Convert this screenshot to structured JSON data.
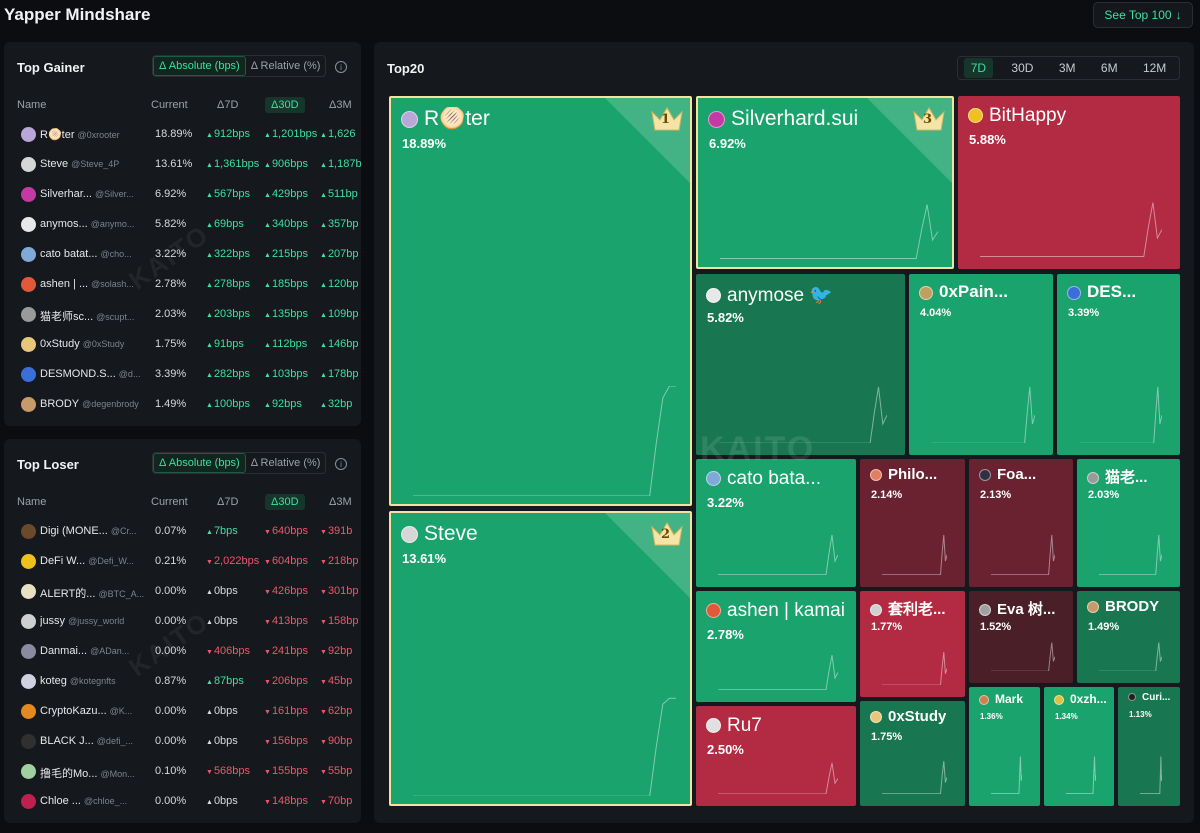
{
  "title": "Yapper Mindshare",
  "see_top": "See Top 100",
  "gainer": {
    "title": "Top Gainer",
    "toggle_abs": "Δ Absolute (bps)",
    "toggle_rel": "Δ Relative (%)",
    "headers": {
      "name": "Name",
      "current": "Current",
      "d7": "Δ7D",
      "d30": "Δ30D",
      "m3": "Δ3M"
    },
    "rows": [
      {
        "name": "R🫓ter",
        "handle": "@0xrooter",
        "current": "18.89%",
        "d7": "912bps",
        "d30": "1,201bps",
        "m3": "1,626",
        "color": "#b9a7d8"
      },
      {
        "name": "Steve",
        "handle": "@Steve_4P",
        "current": "13.61%",
        "d7": "1,361bps",
        "d30": "906bps",
        "m3": "1,187b",
        "color": "#d6d6d6"
      },
      {
        "name": "Silverhar...",
        "handle": "@Silver...",
        "current": "6.92%",
        "d7": "567bps",
        "d30": "429bps",
        "m3": "511bp",
        "color": "#c33aa5"
      },
      {
        "name": "anymos...",
        "handle": "@anymo...",
        "current": "5.82%",
        "d7": "69bps",
        "d30": "340bps",
        "m3": "357bp",
        "color": "#e8e8e8"
      },
      {
        "name": "cato batat...",
        "handle": "@cho...",
        "current": "3.22%",
        "d7": "322bps",
        "d30": "215bps",
        "m3": "207bp",
        "color": "#7fa9d9"
      },
      {
        "name": "ashen | ...",
        "handle": "@solash...",
        "current": "2.78%",
        "d7": "278bps",
        "d30": "185bps",
        "m3": "120bp",
        "color": "#e05a3a"
      },
      {
        "name": "猫老师sc...",
        "handle": "@scupt...",
        "current": "2.03%",
        "d7": "203bps",
        "d30": "135bps",
        "m3": "109bp",
        "color": "#9a9a9a"
      },
      {
        "name": "0xStudy",
        "handle": "@0xStudy",
        "current": "1.75%",
        "d7": "91bps",
        "d30": "112bps",
        "m3": "146bp",
        "color": "#e8c67a"
      },
      {
        "name": "DESMOND.S...",
        "handle": "@d...",
        "current": "3.39%",
        "d7": "282bps",
        "d30": "103bps",
        "m3": "178bp",
        "color": "#3a6fd8"
      },
      {
        "name": "BRODY",
        "handle": "@degenbrody",
        "current": "1.49%",
        "d7": "100bps",
        "d30": "92bps",
        "m3": "32bp",
        "color": "#c79a6a"
      }
    ]
  },
  "loser": {
    "title": "Top Loser",
    "toggle_abs": "Δ Absolute (bps)",
    "toggle_rel": "Δ Relative (%)",
    "headers": {
      "name": "Name",
      "current": "Current",
      "d7": "Δ7D",
      "d30": "Δ30D",
      "m3": "Δ3M"
    },
    "rows": [
      {
        "name": "Digi (MONE...",
        "handle": "@Cr...",
        "current": "0.07%",
        "d7": "7bps",
        "d7dir": "up",
        "d30": "640bps",
        "m3": "391b",
        "color": "#6a4a2a"
      },
      {
        "name": "DeFi W...",
        "handle": "@Defi_W...",
        "current": "0.21%",
        "d7": "2,022bps",
        "d7dir": "dn",
        "d30": "604bps",
        "m3": "218bp",
        "color": "#f0c020"
      },
      {
        "name": "ALERT的...",
        "handle": "@BTC_A...",
        "current": "0.00%",
        "d7": "0bps",
        "d7dir": "flat",
        "d30": "426bps",
        "m3": "301bp",
        "color": "#e8e0c0"
      },
      {
        "name": "jussy",
        "handle": "@jussy_world",
        "current": "0.00%",
        "d7": "0bps",
        "d7dir": "flat",
        "d30": "413bps",
        "m3": "158bp",
        "color": "#cfcfcf"
      },
      {
        "name": "Danmai...",
        "handle": "@ADan...",
        "current": "0.00%",
        "d7": "406bps",
        "d7dir": "dn",
        "d30": "241bps",
        "m3": "92bp",
        "color": "#8a8aa0"
      },
      {
        "name": "koteg",
        "handle": "@kotegnfts",
        "current": "0.87%",
        "d7": "87bps",
        "d7dir": "up",
        "d30": "206bps",
        "m3": "45bp",
        "color": "#d0d0e0"
      },
      {
        "name": "CryptoKazu...",
        "handle": "@K...",
        "current": "0.00%",
        "d7": "0bps",
        "d7dir": "flat",
        "d30": "161bps",
        "m3": "62bp",
        "color": "#e08a20"
      },
      {
        "name": "BLACK J...",
        "handle": "@defi_...",
        "current": "0.00%",
        "d7": "0bps",
        "d7dir": "flat",
        "d30": "156bps",
        "m3": "90bp",
        "color": "#303030"
      },
      {
        "name": "撸毛的Mo...",
        "handle": "@Mon...",
        "current": "0.10%",
        "d7": "568bps",
        "d7dir": "dn",
        "d30": "155bps",
        "m3": "55bp",
        "color": "#a0d0a0"
      },
      {
        "name": "Chloe ...",
        "handle": "@chloe_...",
        "current": "0.00%",
        "d7": "0bps",
        "d7dir": "flat",
        "d30": "148bps",
        "m3": "70bp",
        "color": "#c02050"
      }
    ]
  },
  "top20": {
    "title": "Top20",
    "tabs": [
      "7D",
      "30D",
      "3M",
      "6M",
      "12M"
    ],
    "active_tab": "7D",
    "watermark": "KAITO",
    "tiles": [
      {
        "name": "R🫓ter",
        "pct": "18.89%",
        "trend": "up",
        "rank": "1",
        "avatar": "#b9a7d8"
      },
      {
        "name": "Steve",
        "pct": "13.61%",
        "trend": "up",
        "rank": "2",
        "avatar": "#d6d6d6"
      },
      {
        "name": "Silverhard.sui",
        "pct": "6.92%",
        "trend": "up",
        "rank": "3",
        "avatar": "#c33aa5"
      },
      {
        "name": "BitHappy",
        "pct": "5.88%",
        "trend": "down",
        "avatar": "#f0c020"
      },
      {
        "name": "anymose 🐦",
        "pct": "5.82%",
        "trend": "flat",
        "avatar": "#e8e8e8"
      },
      {
        "name": "0xPain...",
        "pct": "4.04%",
        "trend": "up",
        "avatar": "#c0a060"
      },
      {
        "name": "DES...",
        "pct": "3.39%",
        "trend": "up",
        "avatar": "#3a6fd8"
      },
      {
        "name": "cato bata...",
        "pct": "3.22%",
        "trend": "up",
        "avatar": "#7fa9d9"
      },
      {
        "name": "Philo...",
        "pct": "2.14%",
        "trend": "down",
        "avatar": "#e08060"
      },
      {
        "name": "Foa...",
        "pct": "2.13%",
        "trend": "down",
        "avatar": "#303040"
      },
      {
        "name": "猫老...",
        "pct": "2.03%",
        "trend": "up",
        "avatar": "#9a9a9a"
      },
      {
        "name": "ashen | kamai",
        "pct": "2.78%",
        "trend": "up",
        "avatar": "#e05a3a"
      },
      {
        "name": "套利老...",
        "pct": "1.77%",
        "trend": "down",
        "avatar": "#d0d0d0"
      },
      {
        "name": "Eva 树...",
        "pct": "1.52%",
        "trend": "down",
        "avatar": "#a0a0a0"
      },
      {
        "name": "BRODY",
        "pct": "1.49%",
        "trend": "flat",
        "avatar": "#c79a6a"
      },
      {
        "name": "Ru7",
        "pct": "2.50%",
        "trend": "down",
        "avatar": "#e0e0e0"
      },
      {
        "name": "0xStudy",
        "pct": "1.75%",
        "trend": "flat",
        "avatar": "#e8c67a"
      },
      {
        "name": "Mark",
        "pct": "1.36%",
        "trend": "up",
        "avatar": "#d08050"
      },
      {
        "name": "0xzh...",
        "pct": "1.34%",
        "trend": "up",
        "avatar": "#e0c040"
      },
      {
        "name": "Curi...",
        "pct": "1.13%",
        "trend": "flat",
        "avatar": "#202020"
      }
    ]
  }
}
